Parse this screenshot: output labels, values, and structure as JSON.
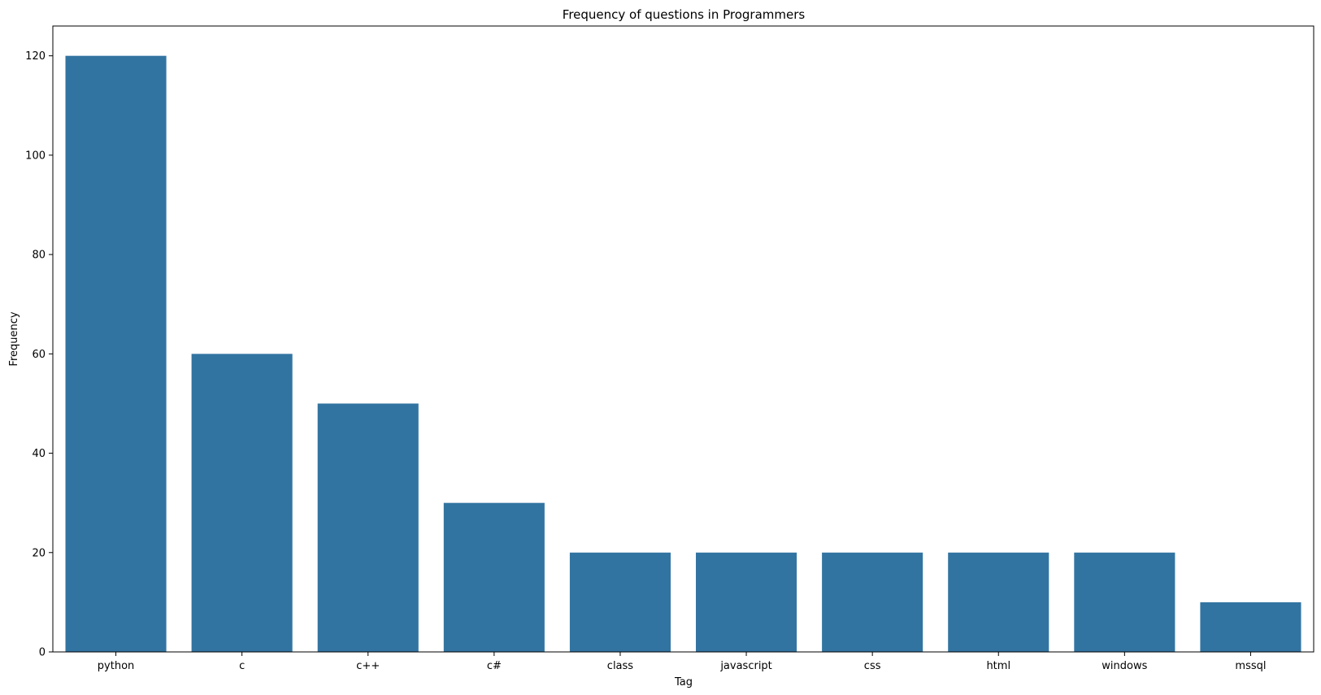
{
  "chart_data": {
    "type": "bar",
    "title": "Frequency of questions in Programmers",
    "xlabel": "Tag",
    "ylabel": "Frequency",
    "categories": [
      "python",
      "c",
      "c++",
      "c#",
      "class",
      "javascript",
      "css",
      "html",
      "windows",
      "mssql"
    ],
    "values": [
      120,
      60,
      50,
      30,
      20,
      20,
      20,
      20,
      20,
      10
    ],
    "ylim": [
      0,
      126
    ],
    "yticks": [
      0,
      20,
      40,
      60,
      80,
      100,
      120
    ],
    "grid": false,
    "bar_color": "#3274a1"
  }
}
